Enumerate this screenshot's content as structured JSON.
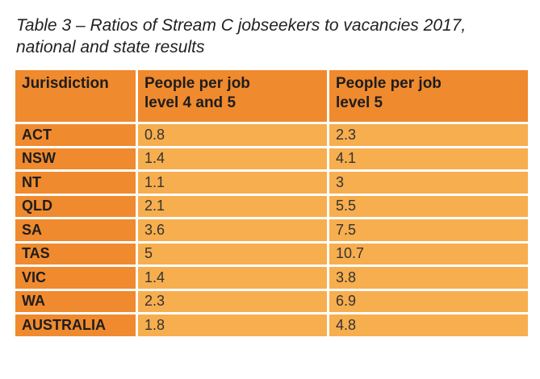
{
  "caption": {
    "line1": "Table 3 – Ratios of Stream C jobseekers to vacancies 2017,",
    "line2": "national and state results"
  },
  "table": {
    "headers": [
      {
        "line1": "Jurisdiction",
        "line2": ""
      },
      {
        "line1": "People per job",
        "line2": "level 4 and 5"
      },
      {
        "line1": "People per job",
        "line2": "level 5"
      }
    ],
    "rows": [
      {
        "jurisdiction": "ACT",
        "level45": "0.8",
        "level5": "2.3"
      },
      {
        "jurisdiction": "NSW",
        "level45": "1.4",
        "level5": "4.1"
      },
      {
        "jurisdiction": "NT",
        "level45": "1.1",
        "level5": "3"
      },
      {
        "jurisdiction": "QLD",
        "level45": "2.1",
        "level5": "5.5"
      },
      {
        "jurisdiction": "SA",
        "level45": "3.6",
        "level5": "7.5"
      },
      {
        "jurisdiction": "TAS",
        "level45": "5",
        "level5": "10.7"
      },
      {
        "jurisdiction": "VIC",
        "level45": "1.4",
        "level5": "3.8"
      },
      {
        "jurisdiction": "WA",
        "level45": "2.3",
        "level5": "6.9"
      },
      {
        "jurisdiction": "AUSTRALIA",
        "level45": "1.8",
        "level5": "4.8"
      }
    ]
  },
  "colors": {
    "header_bg": "#f08a2e",
    "cell_bg": "#f7ae4f"
  }
}
